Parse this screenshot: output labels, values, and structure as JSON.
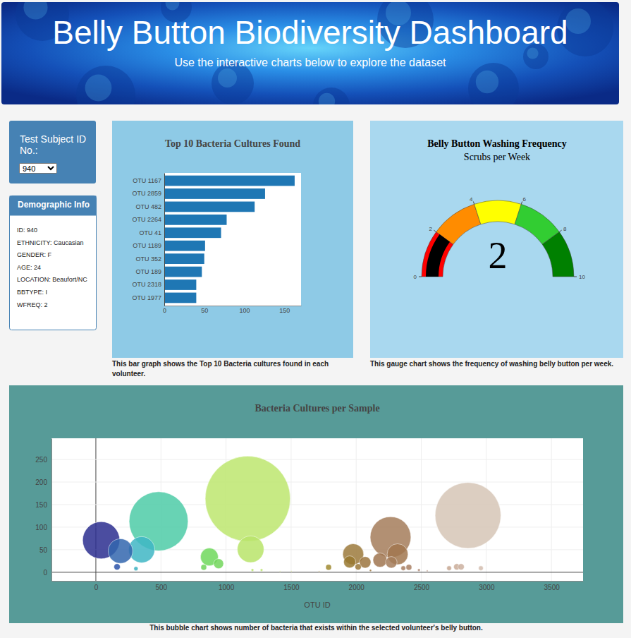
{
  "header": {
    "title": "Belly Button Biodiversity Dashboard",
    "subtitle": "Use the interactive charts below to explore the dataset"
  },
  "selector": {
    "label": "Test Subject ID No.:",
    "value": "940"
  },
  "demographics": {
    "title": "Demographic Info",
    "rows": [
      "ID: 940",
      "ETHNICITY: Caucasian",
      "GENDER: F",
      "AGE: 24",
      "LOCATION: Beaufort/NC",
      "BBTYPE: I",
      "WFREQ: 2"
    ]
  },
  "chart_data": [
    {
      "type": "bar",
      "title": "Top 10 Bacteria Cultures Found",
      "orientation": "horizontal",
      "categories": [
        "OTU 1167",
        "OTU 2859",
        "OTU 482",
        "OTU 2264",
        "OTU 41",
        "OTU 1189",
        "OTU 352",
        "OTU 189",
        "OTU 2318",
        "OTU 1977"
      ],
      "values": [
        163,
        126,
        113,
        78,
        71,
        51,
        50,
        47,
        40,
        40
      ],
      "color": "#1f77b4",
      "xlim": [
        0,
        171
      ],
      "xticks": [
        0,
        50,
        100,
        150
      ],
      "grid": false,
      "caption": "This bar graph shows the Top 10 Bacteria cultures found in each volunteer."
    },
    {
      "type": "gauge",
      "title": "Belly Button Washing Frequency",
      "subtitle": "Scrubs per Week",
      "value": 2,
      "color": "black",
      "xlim": [
        0,
        10
      ],
      "xticks": [
        0,
        2,
        4,
        6,
        8,
        10
      ],
      "steps": [
        0,
        2,
        4,
        6,
        8,
        10
      ],
      "colors": [
        "red",
        "darkorange",
        "yellow",
        "limegreen",
        "green"
      ],
      "caption": "This gauge chart shows the frequency of washing belly button per week."
    },
    {
      "type": "bubble",
      "title": "Bacteria Cultures per Sample",
      "xlabel": "OTU ID",
      "x": [
        1167,
        2859,
        482,
        2264,
        41,
        1189,
        352,
        189,
        2318,
        1977,
        872,
        2183,
        1950,
        2069,
        2270,
        943,
        163,
        2015,
        2773,
        2806,
        829,
        1788,
        2405,
        2362,
        2714,
        2958,
        308,
        1203,
        1273,
        2482,
        2110,
        2546,
        1415,
        1502,
        1715
      ],
      "values": [
        163,
        126,
        113,
        78,
        71,
        51,
        50,
        47,
        40,
        40,
        34,
        27,
        23,
        22,
        22,
        19,
        12,
        12,
        12,
        12,
        11,
        11,
        11,
        9,
        9,
        9,
        8,
        5,
        5,
        5,
        4,
        3,
        2,
        2,
        2
      ],
      "sizes": [
        163,
        126,
        113,
        78,
        71,
        51,
        50,
        47,
        40,
        40,
        34,
        27,
        23,
        22,
        22,
        19,
        12,
        12,
        12,
        12,
        11,
        11,
        11,
        9,
        9,
        9,
        8,
        5,
        5,
        5,
        4,
        3,
        2,
        2,
        2
      ],
      "colors": [
        "#bde66e",
        "#d6c5b6",
        "#4ecba7",
        "#a57c5a",
        "#2b2e8f",
        "#b9e46a",
        "#3fb6c4",
        "#3266ae",
        "#a1774f",
        "#9c7a3c",
        "#6fd85c",
        "#a07650",
        "#98782f",
        "#9c7640",
        "#a57c5a",
        "#72d65c",
        "#2a52a8",
        "#9a7838",
        "#c9ab98",
        "#cbb0a0",
        "#6ed45a",
        "#a08a30",
        "#a98064",
        "#a77e60",
        "#c5a690",
        "#d2bcae",
        "#3bb0c0",
        "#bae46a",
        "#bce46e",
        "#ae8670",
        "#9c7840",
        "#b38c74",
        "#c5dc74",
        "#c8d46e",
        "#b49a38"
      ],
      "xlim": [
        -341,
        3743
      ],
      "ylim": [
        -19,
        297
      ],
      "xticks": [
        0,
        500,
        1000,
        1500,
        2000,
        2500,
        3000,
        3500
      ],
      "yticks": [
        0,
        50,
        100,
        150,
        200,
        250
      ],
      "grid": true,
      "caption": "This bubble chart shows number of bacteria that exists within the selected volunteer's belly button."
    }
  ]
}
